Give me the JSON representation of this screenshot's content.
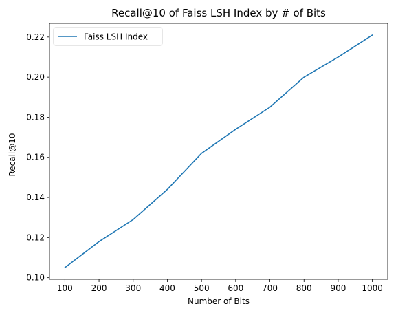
{
  "chart_data": {
    "type": "line",
    "title": "Recall@10 of Faiss LSH Index by # of Bits",
    "xlabel": "Number of Bits",
    "ylabel": "Recall@10",
    "x": [
      100,
      200,
      300,
      400,
      500,
      600,
      700,
      800,
      900,
      1000
    ],
    "series": [
      {
        "name": "Faiss LSH Index",
        "values": [
          0.105,
          0.118,
          0.129,
          0.144,
          0.162,
          0.174,
          0.185,
          0.2,
          0.21,
          0.221
        ],
        "color": "#1f77b4"
      }
    ],
    "xlim": [
      55,
      1045
    ],
    "ylim": [
      0.0992,
      0.2268
    ],
    "xticks": [
      100,
      200,
      300,
      400,
      500,
      600,
      700,
      800,
      900,
      1000
    ],
    "xtick_labels": [
      "100",
      "200",
      "300",
      "400",
      "500",
      "600",
      "700",
      "800",
      "900",
      "1000"
    ],
    "yticks": [
      0.1,
      0.12,
      0.14,
      0.16,
      0.18,
      0.2,
      0.22
    ],
    "ytick_labels": [
      "0.10",
      "0.12",
      "0.14",
      "0.16",
      "0.18",
      "0.20",
      "0.22"
    ],
    "grid": false,
    "legend": "top-left"
  }
}
